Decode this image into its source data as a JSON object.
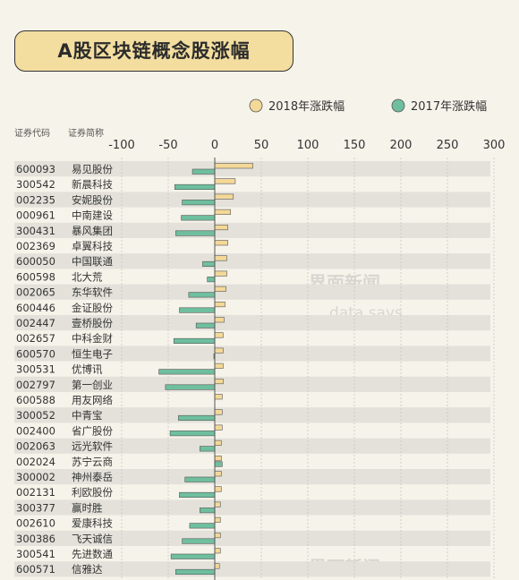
{
  "title": "A股区块链概念股涨幅",
  "header": {
    "code_label": "证券代码",
    "name_label": "证券简称"
  },
  "watermarks": {
    "brand": "界面新闻",
    "sub": "data says"
  },
  "colors": {
    "s2018": "#f3d898",
    "s2017": "#6fbf9f",
    "stroke": "#555555",
    "band": "#e3e1da"
  },
  "chart_data": {
    "type": "bar",
    "orientation": "horizontal",
    "xlim": [
      -100,
      300
    ],
    "xticks": [
      -100,
      -50,
      0,
      50,
      100,
      150,
      200,
      250,
      300
    ],
    "grid": true,
    "legend_position": "top-right",
    "codes": [
      "600093",
      "300542",
      "002235",
      "000961",
      "300431",
      "002369",
      "600050",
      "600598",
      "002065",
      "600446",
      "002447",
      "002657",
      "600570",
      "300531",
      "002797",
      "600588",
      "300052",
      "002400",
      "002063",
      "002024",
      "300002",
      "002131",
      "300377",
      "002610",
      "300386",
      "300541",
      "600571"
    ],
    "categories": [
      "易见股份",
      "新晨科技",
      "安妮股份",
      "中南建设",
      "暴风集团",
      "卓翼科技",
      "中国联通",
      "北大荒",
      "东华软件",
      "金证股份",
      "壹桥股份",
      "中科金财",
      "恒生电子",
      "优博讯",
      "第一创业",
      "用友网络",
      "中青宝",
      "省广股份",
      "远光软件",
      "苏宁云商",
      "神州泰岳",
      "利欧股份",
      "赢时胜",
      "爱康科技",
      "飞天诚信",
      "先进数通",
      "信雅达"
    ],
    "series": [
      {
        "name": "2018年涨跌幅",
        "values": [
          41,
          22,
          20,
          17,
          14,
          14,
          13,
          13,
          12,
          11,
          10,
          9,
          9,
          9,
          9,
          8,
          8,
          8,
          7,
          7,
          7,
          7,
          6,
          6,
          6,
          6,
          5
        ]
      },
      {
        "name": "2017年涨跌幅",
        "values": [
          -24,
          -43,
          -35,
          -36,
          -42,
          0,
          -13,
          -8,
          -28,
          -38,
          -20,
          -44,
          -1,
          -60,
          -53,
          0,
          -39,
          -48,
          -16,
          8,
          -32,
          -38,
          -16,
          -27,
          -35,
          -47,
          -42
        ]
      }
    ]
  }
}
